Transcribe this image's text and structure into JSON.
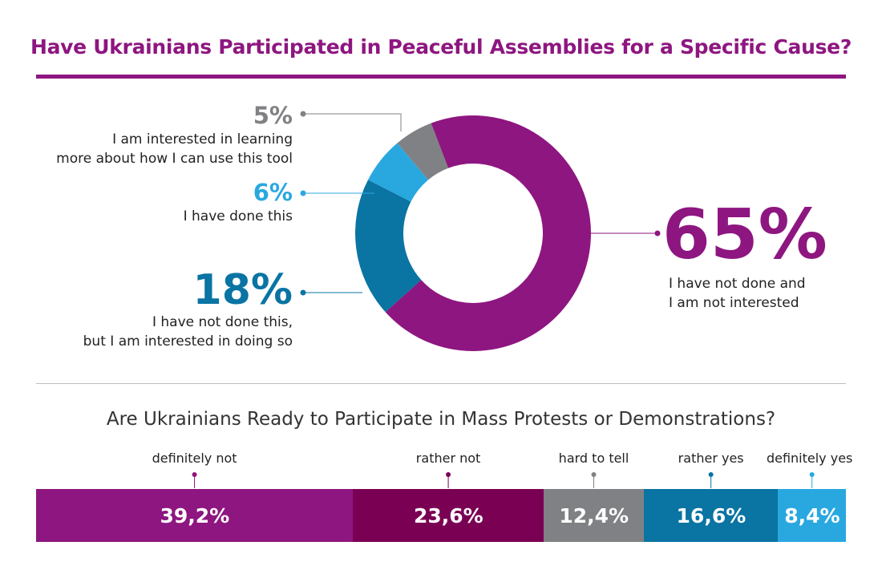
{
  "colors": {
    "purple": "#8e1680",
    "dark_purple": "#7a0054",
    "gray": "#808184",
    "dark_blue": "#0a74a3",
    "light_blue": "#29a8e0"
  },
  "chart_data": [
    {
      "type": "pie",
      "title": "Have Ukrainians Participated in Peaceful Assemblies for a Specific Cause?",
      "slices": [
        {
          "value": 65,
          "label": "65%",
          "text": [
            "I have not done and",
            "I am not interested"
          ],
          "color": "#8e1680"
        },
        {
          "value": 18,
          "label": "18%",
          "text": [
            "I have not done this,",
            "but I am interested in doing so"
          ],
          "color": "#0a74a3"
        },
        {
          "value": 6,
          "label": "6%",
          "text": [
            "I have done this"
          ],
          "color": "#29a8e0"
        },
        {
          "value": 5,
          "label": "5%",
          "text": [
            "I am interested in learning",
            "more about how I can use this tool"
          ],
          "color": "#808184"
        }
      ]
    },
    {
      "type": "bar",
      "orientation": "horizontal-stacked",
      "title": "Are Ukrainians Ready to Participate in Mass Protests or Demonstrations?",
      "categories": [
        "definitely not",
        "rather not",
        "hard to tell",
        "rather yes",
        "definitely yes"
      ],
      "values": [
        39.2,
        23.6,
        12.4,
        16.6,
        8.4
      ],
      "value_labels": [
        "39,2%",
        "23,6%",
        "12,4%",
        "16,6%",
        "8,4%"
      ],
      "colors": [
        "#8e1680",
        "#7a0054",
        "#808184",
        "#0a74a3",
        "#29a8e0"
      ]
    }
  ]
}
